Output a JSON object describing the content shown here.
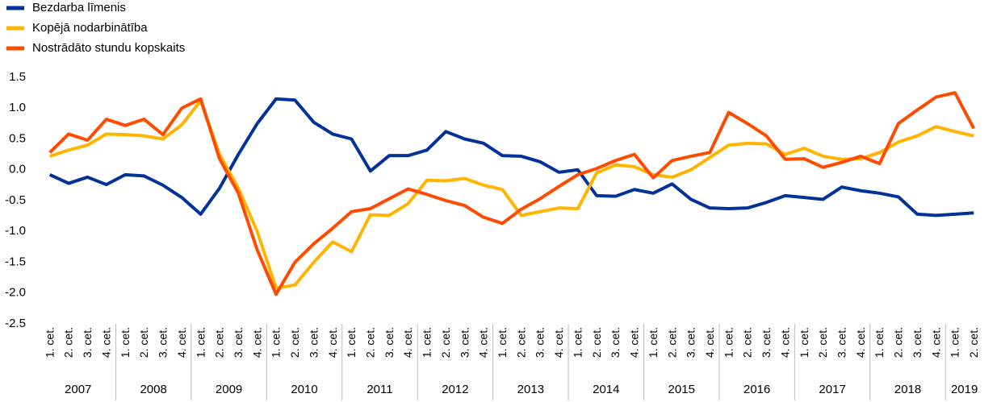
{
  "chart_data": {
    "type": "line",
    "categories": [
      "1. cet.",
      "2. cet.",
      "3. cet.",
      "4. cet.",
      "1. cet.",
      "2. cet.",
      "3. cet.",
      "4. cet.",
      "1. cet.",
      "2. cet.",
      "3. cet.",
      "4. cet.",
      "1. cet.",
      "2. cet.",
      "3. cet.",
      "4. cet.",
      "1. cet.",
      "2. cet.",
      "3. cet.",
      "4. cet.",
      "1. cet.",
      "2. cet.",
      "3. cet.",
      "4. cet.",
      "1. cet.",
      "2. cet.",
      "3. cet.",
      "4. cet.",
      "1. cet.",
      "2. cet.",
      "3. cet.",
      "4. cet.",
      "1. cet.",
      "2. cet.",
      "3. cet.",
      "4. cet.",
      "1. cet.",
      "2. cet.",
      "3. cet.",
      "4. cet.",
      "1. cet.",
      "2. cet.",
      "3. cet.",
      "4. cet.",
      "1. cet.",
      "2. cet.",
      "3. cet.",
      "4. cet.",
      "1. cet.",
      "2. cet."
    ],
    "year_labels": [
      "2007",
      "2008",
      "2009",
      "2010",
      "2011",
      "2012",
      "2013",
      "2014",
      "2015",
      "2016",
      "2017",
      "2018",
      "2019"
    ],
    "series": [
      {
        "name": "Bezdarba līmenis",
        "color": "#003299",
        "values": [
          -0.08,
          -0.22,
          -0.12,
          -0.24,
          -0.08,
          -0.1,
          -0.25,
          -0.45,
          -0.72,
          -0.3,
          0.25,
          0.75,
          1.15,
          1.13,
          0.77,
          0.58,
          0.5,
          -0.02,
          0.23,
          0.23,
          0.32,
          0.62,
          0.5,
          0.43,
          0.23,
          0.22,
          0.13,
          -0.04,
          0.0,
          -0.42,
          -0.43,
          -0.32,
          -0.38,
          -0.23,
          -0.48,
          -0.62,
          -0.63,
          -0.62,
          -0.53,
          -0.42,
          -0.45,
          -0.48,
          -0.28,
          -0.34,
          -0.38,
          -0.44,
          -0.72,
          -0.74,
          -0.72,
          -0.7
        ]
      },
      {
        "name": "Kopējā nodarbinātība",
        "color": "#ffb400",
        "values": [
          0.22,
          0.32,
          0.4,
          0.58,
          0.57,
          0.55,
          0.5,
          0.73,
          1.12,
          0.25,
          -0.3,
          -1.0,
          -1.92,
          -1.87,
          -1.5,
          -1.17,
          -1.33,
          -0.73,
          -0.74,
          -0.55,
          -0.17,
          -0.18,
          -0.14,
          -0.25,
          -0.32,
          -0.74,
          -0.68,
          -0.62,
          -0.63,
          -0.05,
          0.08,
          0.05,
          -0.08,
          -0.12,
          0.0,
          0.2,
          0.4,
          0.43,
          0.42,
          0.25,
          0.35,
          0.22,
          0.17,
          0.18,
          0.28,
          0.45,
          0.55,
          0.7,
          0.62,
          0.55
        ]
      },
      {
        "name": "Nostrādāto stundu kopskaits",
        "color": "#ff4b00",
        "values": [
          0.28,
          0.58,
          0.48,
          0.82,
          0.72,
          0.82,
          0.57,
          1.0,
          1.15,
          0.18,
          -0.38,
          -1.3,
          -2.02,
          -1.5,
          -1.2,
          -0.95,
          -0.68,
          -0.63,
          -0.47,
          -0.31,
          -0.4,
          -0.5,
          -0.58,
          -0.77,
          -0.87,
          -0.64,
          -0.47,
          -0.27,
          -0.08,
          0.02,
          0.15,
          0.25,
          -0.13,
          0.15,
          0.22,
          0.28,
          0.93,
          0.75,
          0.55,
          0.17,
          0.18,
          0.04,
          0.12,
          0.22,
          0.1,
          0.75,
          0.97,
          1.18,
          1.25,
          0.67
        ]
      }
    ],
    "ylim": [
      -2.5,
      1.5
    ],
    "yticks": [
      1.5,
      {
        "value": 1.0,
        "label": "1.0"
      },
      0.5,
      {
        "value": 0.0,
        "label": "0.0"
      },
      -0.5,
      {
        "value": -1.0,
        "label": "-1.0"
      },
      -1.5,
      {
        "value": -2.0,
        "label": "-2.0"
      },
      -2.5
    ],
    "legend": "top-left",
    "grid": false
  }
}
